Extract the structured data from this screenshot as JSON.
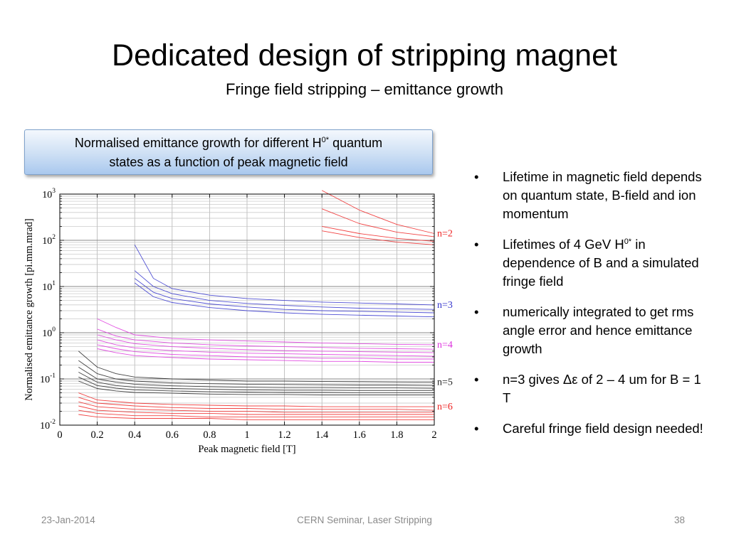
{
  "slide": {
    "title": "Dedicated design of stripping magnet",
    "subtitle": "Fringe field stripping – emittance growth",
    "callout_line1": "Normalised emittance growth for different H",
    "callout_sup": "0*",
    "callout_after_sup": " quantum",
    "callout_line2": "states as a function of peak magnetic field"
  },
  "bullets": [
    {
      "text": "Lifetime in magnetic field depends on quantum state, B-field and ion momentum"
    },
    {
      "pre": "Lifetimes of 4 GeV H",
      "sup": "0*",
      "post": " in dependence of B and a simulated fringe field"
    },
    {
      "text": "numerically integrated to get rms angle error and hence emittance growth"
    },
    {
      "text": "n=3 gives Δε of 2 – 4 um for B = 1 T"
    },
    {
      "text": "Careful fringe field design needed!"
    }
  ],
  "bullet_marker": "•",
  "footer": {
    "date": "23-Jan-2014",
    "center": "CERN Seminar, Laser Stripping",
    "page": "38"
  },
  "chart_data": {
    "type": "line",
    "xlabel": "Peak magnetic field [T]",
    "ylabel": "Normalised emittance growth [pi.mm.mrad]",
    "xlim": [
      0,
      2
    ],
    "ylim": [
      0.01,
      1000
    ],
    "yscale": "log",
    "grid": true,
    "xticks": [
      "0",
      "0.2",
      "0.4",
      "0.6",
      "0.8",
      "1",
      "1.2",
      "1.4",
      "1.6",
      "1.8",
      "2"
    ],
    "yticks": [
      {
        "base": "10",
        "exp": "-2",
        "value": 0.01
      },
      {
        "base": "10",
        "exp": "-1",
        "value": 0.1
      },
      {
        "base": "10",
        "exp": "0",
        "value": 1
      },
      {
        "base": "10",
        "exp": "1",
        "value": 10
      },
      {
        "base": "10",
        "exp": "2",
        "value": 100
      },
      {
        "base": "10",
        "exp": "3",
        "value": 1000
      }
    ],
    "groups": [
      {
        "label": "n=2",
        "color": "#ee2222",
        "series": [
          {
            "x": [
              1.4,
              1.6,
              1.8,
              2.0
            ],
            "y": [
              1200,
              450,
              220,
              140
            ]
          },
          {
            "x": [
              1.4,
              1.6,
              1.8,
              2.0
            ],
            "y": [
              480,
              230,
              150,
              120
            ]
          },
          {
            "x": [
              1.4,
              1.6,
              1.8,
              2.0
            ],
            "y": [
              200,
              140,
              110,
              95
            ]
          },
          {
            "x": [
              1.4,
              1.6,
              1.8,
              2.0
            ],
            "y": [
              160,
              115,
              92,
              80
            ]
          }
        ]
      },
      {
        "label": "n=3",
        "color": "#3333cc",
        "series": [
          {
            "x": [
              0.4,
              0.5,
              0.6,
              0.8,
              1.0,
              1.2,
              1.4,
              1.6,
              1.8,
              2.0
            ],
            "y": [
              80,
              15,
              9,
              6.5,
              5.5,
              5,
              4.6,
              4.4,
              4.2,
              4
            ]
          },
          {
            "x": [
              0.4,
              0.5,
              0.6,
              0.8,
              1.0,
              1.2,
              1.4,
              1.6,
              1.8,
              2.0
            ],
            "y": [
              22,
              10,
              7,
              5,
              4.3,
              3.9,
              3.6,
              3.4,
              3.3,
              3.2
            ]
          },
          {
            "x": [
              0.4,
              0.5,
              0.6,
              0.8,
              1.0,
              1.2,
              1.4,
              1.6,
              1.8,
              2.0
            ],
            "y": [
              15,
              7.5,
              5.5,
              4.2,
              3.6,
              3.2,
              3.0,
              2.9,
              2.8,
              2.7
            ]
          },
          {
            "x": [
              0.4,
              0.5,
              0.6,
              0.8,
              1.0,
              1.2,
              1.4,
              1.6,
              1.8,
              2.0
            ],
            "y": [
              12,
              6,
              4.5,
              3.5,
              3.0,
              2.7,
              2.5,
              2.4,
              2.3,
              2.2
            ]
          }
        ]
      },
      {
        "label": "n=4",
        "color": "#dd33dd",
        "series": [
          {
            "x": [
              0.2,
              0.3,
              0.4,
              0.6,
              0.8,
              1.0,
              1.2,
              1.4,
              1.6,
              1.8,
              2.0
            ],
            "y": [
              2,
              1.3,
              0.9,
              0.75,
              0.7,
              0.66,
              0.63,
              0.6,
              0.58,
              0.56,
              0.55
            ]
          },
          {
            "x": [
              0.2,
              0.3,
              0.4,
              0.6,
              0.8,
              1.0,
              1.2,
              1.4,
              1.6,
              1.8,
              2.0
            ],
            "y": [
              1.2,
              0.85,
              0.7,
              0.6,
              0.55,
              0.52,
              0.5,
              0.48,
              0.46,
              0.45,
              0.44
            ]
          },
          {
            "x": [
              0.2,
              0.3,
              0.4,
              0.6,
              0.8,
              1.0,
              1.2,
              1.4,
              1.6,
              1.8,
              2.0
            ],
            "y": [
              0.9,
              0.7,
              0.58,
              0.5,
              0.46,
              0.43,
              0.41,
              0.4,
              0.39,
              0.38,
              0.37
            ]
          },
          {
            "x": [
              0.2,
              0.3,
              0.4,
              0.6,
              0.8,
              1.0,
              1.2,
              1.4,
              1.6,
              1.8,
              2.0
            ],
            "y": [
              0.7,
              0.55,
              0.47,
              0.41,
              0.38,
              0.36,
              0.35,
              0.34,
              0.33,
              0.32,
              0.31
            ]
          },
          {
            "x": [
              0.2,
              0.3,
              0.4,
              0.6,
              0.8,
              1.0,
              1.2,
              1.4,
              1.6,
              1.8,
              2.0
            ],
            "y": [
              0.55,
              0.45,
              0.39,
              0.34,
              0.32,
              0.3,
              0.29,
              0.28,
              0.28,
              0.27,
              0.27
            ]
          },
          {
            "x": [
              0.2,
              0.3,
              0.4,
              0.6,
              0.8,
              1.0,
              1.2,
              1.4,
              1.6,
              1.8,
              2.0
            ],
            "y": [
              0.45,
              0.37,
              0.32,
              0.29,
              0.27,
              0.26,
              0.25,
              0.24,
              0.24,
              0.23,
              0.23
            ]
          }
        ]
      },
      {
        "label": "n=5",
        "color": "#222222",
        "series": [
          {
            "x": [
              0.1,
              0.2,
              0.3,
              0.4,
              0.6,
              0.8,
              1.0,
              1.2,
              1.4,
              1.6,
              1.8,
              2.0
            ],
            "y": [
              0.4,
              0.18,
              0.13,
              0.11,
              0.1,
              0.095,
              0.09,
              0.09,
              0.088,
              0.087,
              0.086,
              0.085
            ]
          },
          {
            "x": [
              0.1,
              0.2,
              0.3,
              0.4,
              0.6,
              0.8,
              1.0,
              1.2,
              1.4,
              1.6,
              1.8,
              2.0
            ],
            "y": [
              0.25,
              0.13,
              0.1,
              0.09,
              0.082,
              0.079,
              0.077,
              0.076,
              0.075,
              0.074,
              0.074,
              0.073
            ]
          },
          {
            "x": [
              0.1,
              0.2,
              0.3,
              0.4,
              0.6,
              0.8,
              1.0,
              1.2,
              1.4,
              1.6,
              1.8,
              2.0
            ],
            "y": [
              0.18,
              0.1,
              0.085,
              0.077,
              0.071,
              0.068,
              0.066,
              0.065,
              0.065,
              0.064,
              0.064,
              0.063
            ]
          },
          {
            "x": [
              0.1,
              0.2,
              0.3,
              0.4,
              0.6,
              0.8,
              1.0,
              1.2,
              1.4,
              1.6,
              1.8,
              2.0
            ],
            "y": [
              0.14,
              0.085,
              0.072,
              0.066,
              0.062,
              0.06,
              0.058,
              0.057,
              0.057,
              0.056,
              0.056,
              0.056
            ]
          },
          {
            "x": [
              0.1,
              0.2,
              0.3,
              0.4,
              0.6,
              0.8,
              1.0,
              1.2,
              1.4,
              1.6,
              1.8,
              2.0
            ],
            "y": [
              0.11,
              0.072,
              0.063,
              0.058,
              0.055,
              0.053,
              0.052,
              0.051,
              0.051,
              0.05,
              0.05,
              0.05
            ]
          },
          {
            "x": [
              0.1,
              0.2,
              0.3,
              0.4,
              0.6,
              0.8,
              1.0,
              1.2,
              1.4,
              1.6,
              1.8,
              2.0
            ],
            "y": [
              0.09,
              0.062,
              0.055,
              0.051,
              0.049,
              0.047,
              0.046,
              0.046,
              0.045,
              0.045,
              0.045,
              0.045
            ]
          }
        ]
      },
      {
        "label": "n=6",
        "color": "#ee2222",
        "series": [
          {
            "x": [
              0.1,
              0.2,
              0.4,
              0.6,
              0.8,
              1.0,
              1.2,
              1.4,
              1.6,
              1.8,
              2.0
            ],
            "y": [
              0.05,
              0.035,
              0.03,
              0.028,
              0.027,
              0.026,
              0.026,
              0.025,
              0.025,
              0.025,
              0.025
            ]
          },
          {
            "x": [
              0.1,
              0.2,
              0.4,
              0.6,
              0.8,
              1.0,
              1.2,
              1.4,
              1.6,
              1.8,
              2.0
            ],
            "y": [
              0.04,
              0.03,
              0.026,
              0.024,
              0.023,
              0.023,
              0.022,
              0.022,
              0.022,
              0.022,
              0.021
            ]
          },
          {
            "x": [
              0.1,
              0.2,
              0.4,
              0.6,
              0.8,
              1.0,
              1.2,
              1.4,
              1.6,
              1.8,
              2.0
            ],
            "y": [
              0.032,
              0.025,
              0.022,
              0.021,
              0.02,
              0.02,
              0.019,
              0.019,
              0.019,
              0.019,
              0.019
            ]
          },
          {
            "x": [
              0.1,
              0.2,
              0.4,
              0.6,
              0.8,
              1.0,
              1.2,
              1.4,
              1.6,
              1.8,
              2.0
            ],
            "y": [
              0.026,
              0.021,
              0.019,
              0.018,
              0.018,
              0.017,
              0.017,
              0.017,
              0.017,
              0.017,
              0.017
            ]
          },
          {
            "x": [
              0.1,
              0.2,
              0.4,
              0.6,
              0.8,
              1.0,
              1.2,
              1.4,
              1.6,
              1.8,
              2.0
            ],
            "y": [
              0.021,
              0.018,
              0.016,
              0.016,
              0.015,
              0.015,
              0.015,
              0.015,
              0.015,
              0.015,
              0.015
            ]
          },
          {
            "x": [
              0.1,
              0.2,
              0.4,
              0.6,
              0.8,
              1.0,
              1.2,
              1.4,
              1.6,
              1.8,
              2.0
            ],
            "y": [
              0.017,
              0.015,
              0.014,
              0.014,
              0.014,
              0.013,
              0.013,
              0.013,
              0.013,
              0.013,
              0.013
            ]
          }
        ]
      }
    ]
  }
}
